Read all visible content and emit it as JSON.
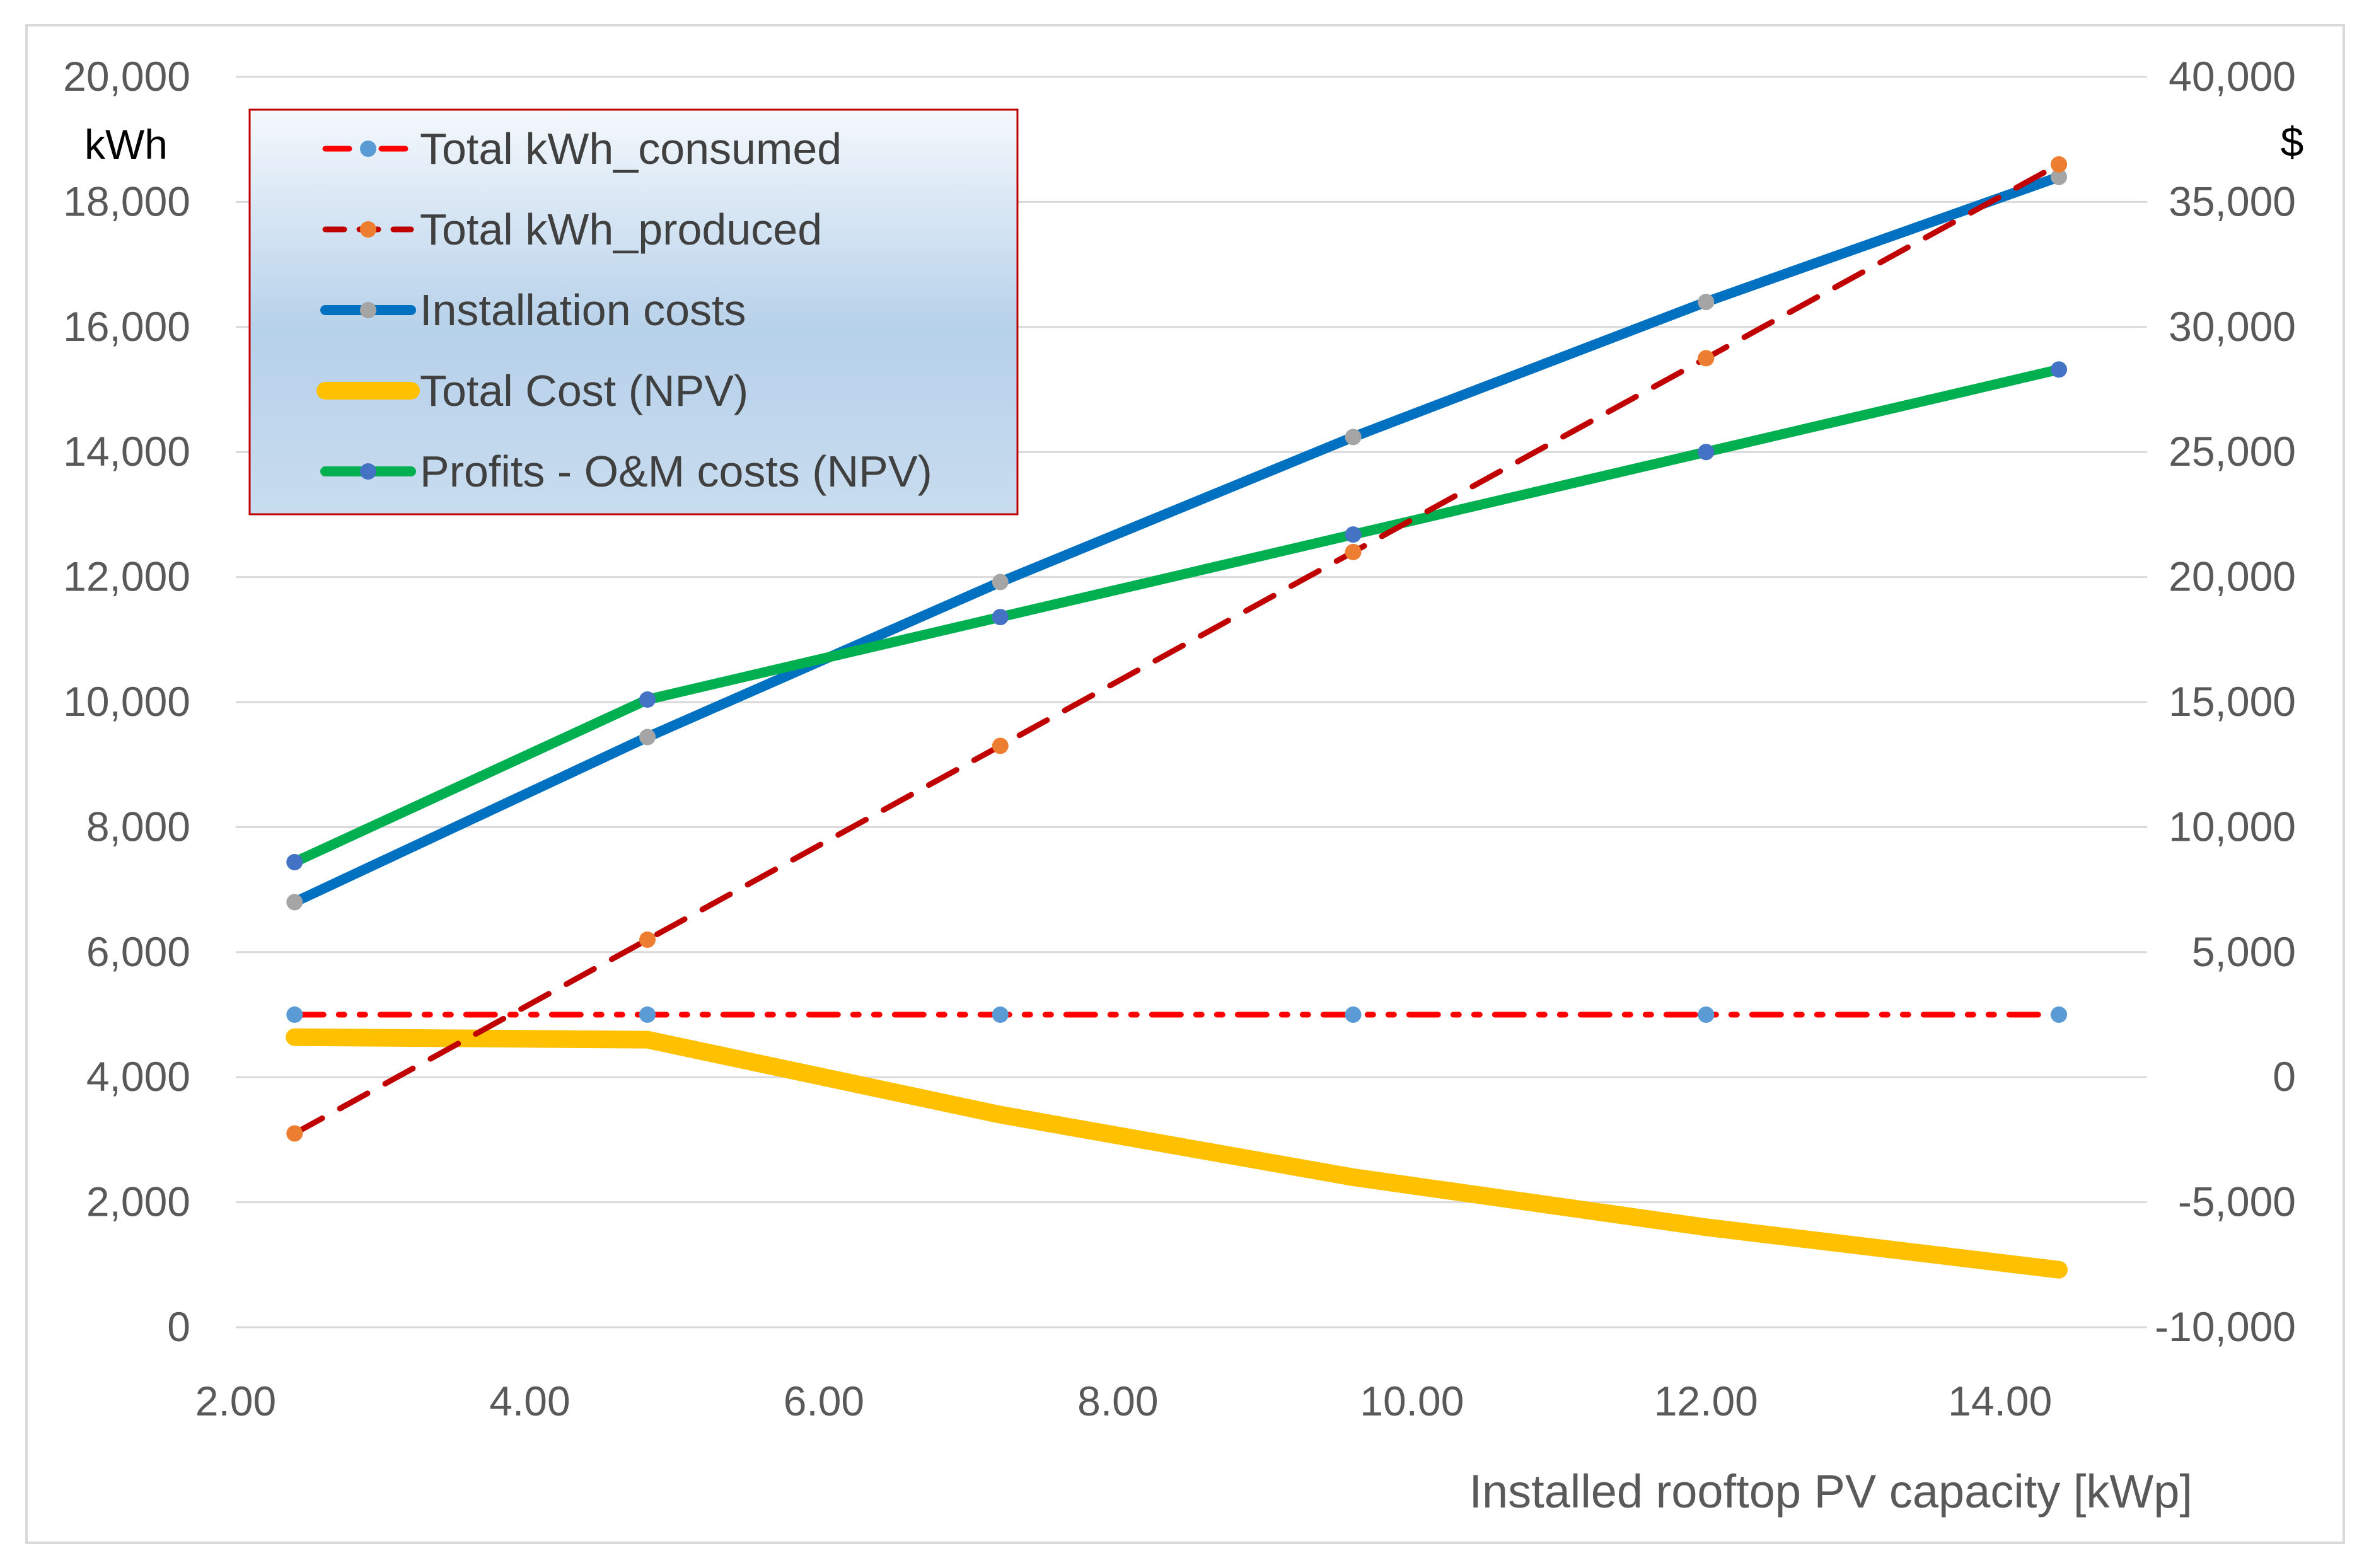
{
  "chart_data": {
    "type": "line",
    "xlabel": "Installed rooftop PV capacity [kWp]",
    "ylabel_left": "kWh",
    "ylabel_right": "$",
    "x": [
      2.4,
      4.8,
      7.2,
      9.6,
      12.0,
      14.4
    ],
    "xlim": [
      2.0,
      15.0
    ],
    "ylim_left": [
      0,
      20000
    ],
    "ylim_right": [
      -10000,
      40000
    ],
    "x_ticks": [
      "2.00",
      "4.00",
      "6.00",
      "8.00",
      "10.00",
      "12.00",
      "14.00"
    ],
    "y_left_ticks": [
      "0",
      "2,000",
      "4,000",
      "6,000",
      "8,000",
      "10,000",
      "12,000",
      "14,000",
      "16,000",
      "18,000",
      "20,000"
    ],
    "y_right_ticks": [
      "-10,000",
      "-5,000",
      "0",
      "5,000",
      "10,000",
      "15,000",
      "20,000",
      "25,000",
      "30,000",
      "35,000",
      "40,000"
    ],
    "grid": true,
    "legend_position": "top-left",
    "series": [
      {
        "name": "Total kWh_consumed",
        "axis": "left",
        "values": [
          5000,
          5000,
          5000,
          5000,
          5000,
          5000
        ],
        "color": "#FF0000",
        "marker_color": "#5B9BD5",
        "style": "dash-dot-dot"
      },
      {
        "name": "Total kWh_produced",
        "axis": "left",
        "values": [
          3100,
          6200,
          9300,
          12400,
          15500,
          18600
        ],
        "color": "#C00000",
        "marker_color": "#ED7D31",
        "style": "dash"
      },
      {
        "name": "Installation costs",
        "axis": "right",
        "values": [
          7000,
          13600,
          19800,
          25600,
          31000,
          36000
        ],
        "color": "#0070C0",
        "marker_color": "#A5A5A5",
        "style": "solid"
      },
      {
        "name": "Total Cost (NPV)",
        "axis": "right",
        "values": [
          1600,
          1500,
          -1500,
          -4000,
          -6000,
          -7700
        ],
        "color": "#FFC000",
        "marker_color": "",
        "style": "solid-thick"
      },
      {
        "name": "Profits - O&M costs (NPV)",
        "axis": "right",
        "values": [
          8600,
          15100,
          18400,
          21700,
          25000,
          28300
        ],
        "color": "#00B050",
        "marker_color": "#4472C4",
        "style": "solid"
      }
    ]
  }
}
